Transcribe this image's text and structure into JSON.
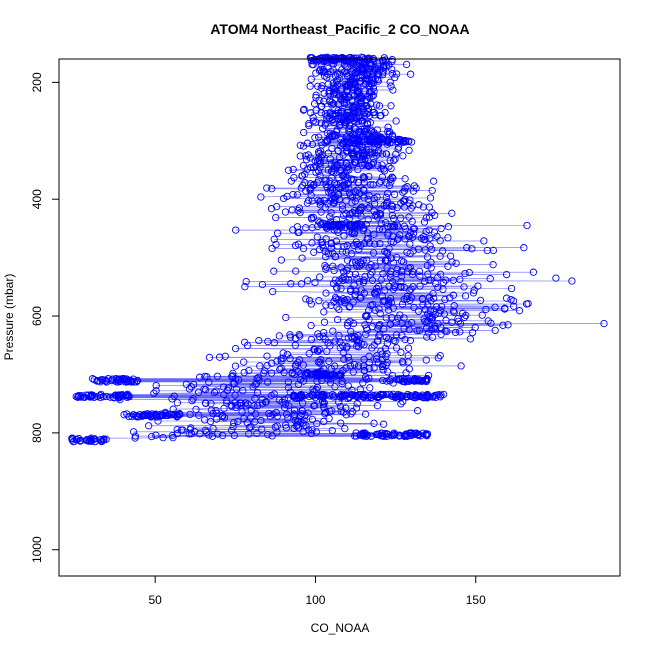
{
  "chart_data": {
    "type": "scatter",
    "title": "ATOM4 Northeast_Pacific_2 CO_NOAA",
    "xlabel": "CO_NOAA",
    "ylabel": "Pressure (mbar)",
    "xlim": [
      20,
      195
    ],
    "ylim": [
      160,
      1045
    ],
    "y_reversed": true,
    "x_ticks": [
      50,
      100,
      150
    ],
    "y_ticks": [
      200,
      400,
      600,
      800,
      1000
    ],
    "series_color": "#0000ff",
    "marker": "open-circle",
    "connected_line": true,
    "point_count_approx": 2600,
    "bands": [
      {
        "pressure": 160,
        "co_range": [
          90,
          135
        ]
      },
      {
        "pressure": 200,
        "co_range": [
          95,
          130
        ]
      },
      {
        "pressure": 250,
        "co_range": [
          92,
          128
        ]
      },
      {
        "pressure": 300,
        "co_range": [
          90,
          135
        ]
      },
      {
        "pressure": 350,
        "co_range": [
          85,
          135
        ]
      },
      {
        "pressure": 400,
        "co_range": [
          75,
          150
        ]
      },
      {
        "pressure": 450,
        "co_range": [
          70,
          165
        ]
      },
      {
        "pressure": 500,
        "co_range": [
          72,
          168
        ]
      },
      {
        "pressure": 550,
        "co_range": [
          70,
          175
        ]
      },
      {
        "pressure": 600,
        "co_range": [
          85,
          180
        ]
      },
      {
        "pressure": 650,
        "co_range": [
          60,
          160
        ]
      },
      {
        "pressure": 700,
        "co_range": [
          40,
          150
        ]
      },
      {
        "pressure": 735,
        "co_range": [
          30,
          140
        ]
      },
      {
        "pressure": 770,
        "co_range": [
          35,
          140
        ]
      },
      {
        "pressure": 800,
        "co_range": [
          28,
          138
        ]
      },
      {
        "pressure": 812,
        "co_range": [
          24,
          35
        ]
      }
    ],
    "dense_levels": [
      {
        "pressure": 160,
        "co_range": [
          98,
          122
        ]
      },
      {
        "pressure": 300,
        "co_range": [
          112,
          130
        ]
      },
      {
        "pressure": 445,
        "co_range": [
          103,
          115
        ]
      },
      {
        "pressure": 700,
        "co_range": [
          95,
          108
        ]
      },
      {
        "pressure": 710,
        "co_range": [
          30,
          45
        ]
      },
      {
        "pressure": 710,
        "co_range": [
          122,
          135
        ]
      },
      {
        "pressure": 737,
        "co_range": [
          25,
          42
        ]
      },
      {
        "pressure": 737,
        "co_range": [
          93,
          140
        ]
      },
      {
        "pressure": 770,
        "co_range": [
          40,
          58
        ]
      },
      {
        "pressure": 803,
        "co_range": [
          112,
          135
        ]
      },
      {
        "pressure": 812,
        "co_range": [
          24,
          34
        ]
      }
    ],
    "outliers": [
      {
        "x": 190,
        "y": 613
      },
      {
        "x": 180,
        "y": 540
      },
      {
        "x": 175,
        "y": 535
      },
      {
        "x": 168,
        "y": 525
      },
      {
        "x": 165,
        "y": 483
      },
      {
        "x": 166,
        "y": 445
      }
    ]
  }
}
